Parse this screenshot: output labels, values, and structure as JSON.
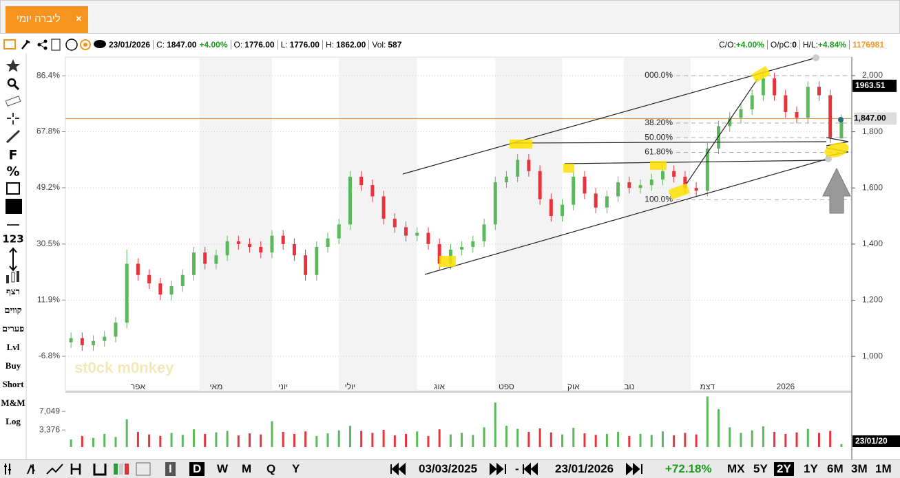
{
  "tab": {
    "title": "ליברה יומי",
    "close": "×"
  },
  "header": {
    "date": "23/01/2026",
    "items": [
      {
        "label": "C:",
        "value": "1847.00",
        "change": "+4.00%"
      },
      {
        "label": "O:",
        "value": "1776.00"
      },
      {
        "label": "L:",
        "value": "1776.00"
      },
      {
        "label": "H:",
        "value": "1862.00"
      },
      {
        "label": "Vol:",
        "value": "587"
      }
    ],
    "right": [
      {
        "label": "C/O:",
        "value": "+4.00%"
      },
      {
        "label": "O/pC:",
        "value": "0"
      },
      {
        "label": "H/L:",
        "value": "+4.84%"
      }
    ],
    "id": "1176981"
  },
  "toolbar": {
    "items": [
      "F",
      "%",
      "123",
      "רצף",
      "קווים",
      "פערים",
      "Lvl",
      "Buy",
      "Short",
      "M&M",
      "Log"
    ]
  },
  "bottom_bar": {
    "periods": [
      "I",
      "D",
      "W",
      "M",
      "Q",
      "Y"
    ],
    "from": "03/03/2025",
    "dash": "-",
    "to": "23/01/2026",
    "change": "+72.18%",
    "ranges": [
      "MX",
      "5Y",
      "2Y",
      "1Y",
      "6M",
      "3M",
      "1M"
    ]
  },
  "chart_data": {
    "type": "candlestick",
    "watermark": "st0ck m0nkey",
    "categories": [
      null,
      null,
      null,
      null,
      null,
      null,
      "אפר",
      null,
      null,
      null,
      null,
      null,
      null,
      "מאי",
      null,
      null,
      null,
      null,
      null,
      "יוני",
      null,
      null,
      null,
      null,
      null,
      "יולי",
      null,
      null,
      null,
      null,
      null,
      null,
      null,
      "אוג",
      null,
      null,
      null,
      null,
      null,
      "ספט",
      null,
      null,
      null,
      null,
      null,
      "אוק",
      null,
      null,
      null,
      null,
      "נוב",
      null,
      null,
      null,
      null,
      null,
      null,
      "דצמ",
      null,
      null,
      null,
      null,
      null,
      null,
      "2026",
      null,
      null,
      null,
      null,
      null
    ],
    "open": [
      1050,
      1065,
      1040,
      1055,
      1070,
      1120,
      1330,
      1290,
      1260,
      1220,
      1250,
      1290,
      1370,
      1330,
      1360,
      1410,
      1400,
      1390,
      1370,
      1430,
      1400,
      1360,
      1290,
      1390,
      1420,
      1470,
      1640,
      1610,
      1570,
      1490,
      1460,
      1430,
      1440,
      1400,
      1330,
      1380,
      1390,
      1410,
      1470,
      1620,
      1640,
      1700,
      1660,
      1560,
      1500,
      1540,
      1640,
      1580,
      1530,
      1570,
      1620,
      1600,
      1610,
      1630,
      1660,
      1640,
      1600,
      1590,
      1740,
      1820,
      1850,
      1880,
      1930,
      1990,
      1930,
      1870,
      1850,
      1960,
      1930,
      1776
    ],
    "high": [
      1085,
      1085,
      1075,
      1090,
      1140,
      1380,
      1350,
      1310,
      1280,
      1270,
      1310,
      1390,
      1390,
      1380,
      1430,
      1430,
      1420,
      1410,
      1450,
      1450,
      1420,
      1380,
      1410,
      1440,
      1490,
      1660,
      1660,
      1630,
      1590,
      1510,
      1480,
      1460,
      1460,
      1420,
      1400,
      1410,
      1430,
      1490,
      1640,
      1660,
      1720,
      1720,
      1680,
      1580,
      1560,
      1660,
      1660,
      1600,
      1590,
      1640,
      1640,
      1630,
      1650,
      1680,
      1680,
      1660,
      1620,
      1760,
      1840,
      1870,
      1900,
      1950,
      2010,
      2010,
      1950,
      1890,
      1980,
      1980,
      1950,
      1862
    ],
    "low": [
      1030,
      1020,
      1020,
      1035,
      1050,
      1100,
      1270,
      1240,
      1200,
      1200,
      1230,
      1270,
      1310,
      1310,
      1340,
      1380,
      1370,
      1350,
      1350,
      1380,
      1340,
      1270,
      1270,
      1370,
      1400,
      1450,
      1590,
      1550,
      1470,
      1440,
      1410,
      1410,
      1380,
      1310,
      1310,
      1360,
      1370,
      1390,
      1450,
      1600,
      1620,
      1640,
      1540,
      1480,
      1480,
      1520,
      1560,
      1510,
      1510,
      1550,
      1580,
      1580,
      1590,
      1610,
      1620,
      1580,
      1570,
      1570,
      1720,
      1800,
      1830,
      1860,
      1910,
      1910,
      1850,
      1830,
      1830,
      1910,
      1760,
      1776
    ],
    "close": [
      1065,
      1040,
      1055,
      1070,
      1120,
      1330,
      1290,
      1260,
      1220,
      1250,
      1290,
      1370,
      1330,
      1360,
      1410,
      1400,
      1390,
      1370,
      1430,
      1400,
      1360,
      1290,
      1390,
      1420,
      1470,
      1640,
      1610,
      1570,
      1490,
      1460,
      1430,
      1440,
      1400,
      1330,
      1380,
      1390,
      1410,
      1470,
      1620,
      1640,
      1700,
      1660,
      1560,
      1500,
      1540,
      1640,
      1580,
      1530,
      1570,
      1620,
      1600,
      1610,
      1630,
      1660,
      1640,
      1600,
      1590,
      1740,
      1820,
      1850,
      1880,
      1930,
      1990,
      1930,
      1870,
      1850,
      1960,
      1930,
      1780,
      1847
    ],
    "close_label": "1,847.00",
    "volume": [
      1500,
      2200,
      1800,
      2600,
      2000,
      5500,
      3000,
      2500,
      2200,
      2800,
      2400,
      3500,
      2600,
      2900,
      3200,
      2300,
      2700,
      2500,
      5100,
      3000,
      2600,
      3100,
      2200,
      2700,
      3300,
      4200,
      3200,
      2800,
      3400,
      2300,
      2600,
      3100,
      2200,
      3500,
      2500,
      2800,
      2400,
      3900,
      8800,
      4200,
      3600,
      3000,
      3700,
      2900,
      2500,
      3800,
      2700,
      2400,
      2600,
      3000,
      2200,
      2600,
      2400,
      3100,
      2300,
      2800,
      2500,
      10000,
      7500,
      3900,
      2800,
      3300,
      4100,
      3000,
      2600,
      2900,
      3600,
      2800,
      3200,
      587
    ],
    "ylim": [
      922,
      2066
    ],
    "yticks": [
      {
        "value": 1000,
        "label": "1,000"
      },
      {
        "value": 1200,
        "label": "1,200"
      },
      {
        "value": 1400,
        "label": "1,400"
      },
      {
        "value": 1600,
        "label": "1,600"
      },
      {
        "value": 1800,
        "label": "1,800"
      },
      {
        "value": 2000,
        "label": "2,000"
      }
    ],
    "y2lim": [
      -14.1,
      92.6
    ],
    "y2ticks": [
      {
        "value": -6.8,
        "label": "-6.8%"
      },
      {
        "value": 11.9,
        "label": "11.9%"
      },
      {
        "value": 30.5,
        "label": "30.5%"
      },
      {
        "value": 49.2,
        "label": "49.2%"
      },
      {
        "value": 67.8,
        "label": "67.8%"
      },
      {
        "value": 86.4,
        "label": "86.4%"
      }
    ],
    "vlim": [
      0,
      10200
    ],
    "vticks": [
      {
        "value": 3376,
        "label": "3,376"
      },
      {
        "value": 7049,
        "label": "7,049"
      }
    ],
    "cursor_price": 1963.51,
    "date_label": "23/01/20",
    "fib": {
      "high": 2000,
      "low": 1558,
      "levels": [
        {
          "value": 0,
          "label": "000.0%"
        },
        {
          "value": 38.2,
          "label": "38.20%"
        },
        {
          "value": 50,
          "label": "50.00%"
        },
        {
          "value": 61.8,
          "label": "61.80%"
        },
        {
          "value": 100,
          "label": "100.0%"
        }
      ]
    },
    "grid": true
  }
}
